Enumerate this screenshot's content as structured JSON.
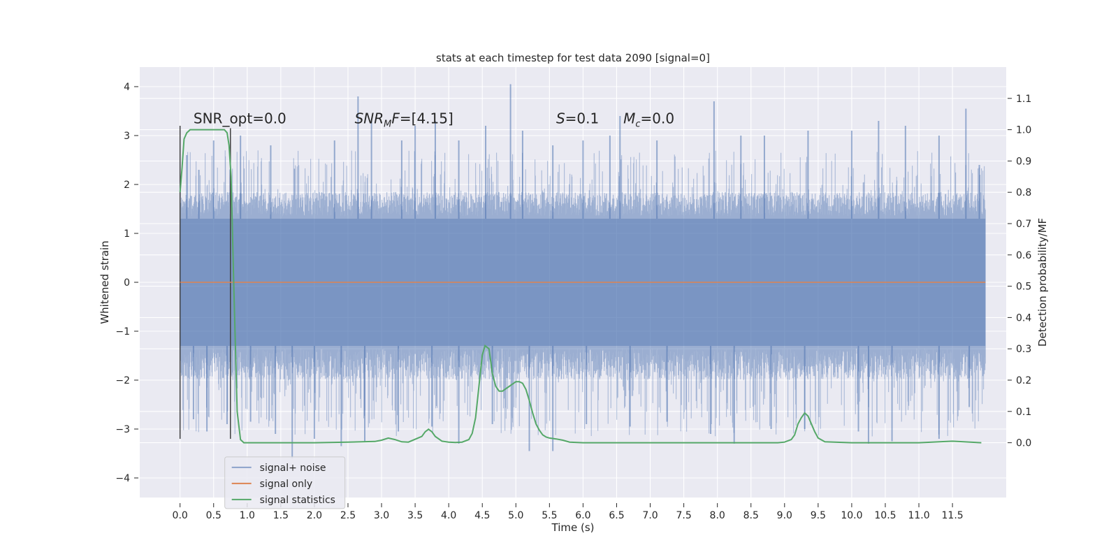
{
  "chart_data": {
    "type": "line",
    "title": "stats at each timestep for test data 2090 [signal=0]",
    "xlabel": "Time (s)",
    "ylabel": "Whitened strain",
    "y2label": "Detection probability/MF",
    "xlim": [
      -0.6,
      12.3
    ],
    "ylim": [
      -4.4,
      4.4
    ],
    "y2lim": [
      -0.175,
      1.2
    ],
    "x_ticks": [
      0.0,
      0.5,
      1.0,
      1.5,
      2.0,
      2.5,
      3.0,
      3.5,
      4.0,
      4.5,
      5.0,
      5.5,
      6.0,
      6.5,
      7.0,
      7.5,
      8.0,
      8.5,
      9.0,
      9.5,
      10.0,
      10.5,
      11.0,
      11.5
    ],
    "x_tick_labels": [
      "0.0",
      "0.5",
      "1.0",
      "1.5",
      "2.0",
      "2.5",
      "3.0",
      "3.5",
      "4.0",
      "4.5",
      "5.0",
      "5.5",
      "6.0",
      "6.5",
      "7.0",
      "7.5",
      "8.0",
      "8.5",
      "9.0",
      "9.5",
      "10.0",
      "10.5",
      "11.0",
      "11.5"
    ],
    "y_ticks": [
      -4,
      -3,
      -2,
      -1,
      0,
      1,
      2,
      3,
      4
    ],
    "y_tick_labels": [
      "−4",
      "−3",
      "−2",
      "−1",
      "0",
      "1",
      "2",
      "3",
      "4"
    ],
    "y2_ticks": [
      0.0,
      0.1,
      0.2,
      0.3,
      0.4,
      0.5,
      0.6,
      0.7,
      0.8,
      0.9,
      1.0,
      1.1
    ],
    "y2_tick_labels": [
      "0.0",
      "0.1",
      "0.2",
      "0.3",
      "0.4",
      "0.5",
      "0.6",
      "0.7",
      "0.8",
      "0.9",
      "1.0",
      "1.1"
    ],
    "grid": true,
    "legend_position": "bottom-left",
    "colors": {
      "background": "#eaeaf2",
      "grid": "#ffffff",
      "noise": "#4c72b0",
      "signal_only": "#dd8452",
      "statistics": "#55a868",
      "marker": "#404040"
    },
    "series": [
      {
        "name": "signal+ noise",
        "kind": "noise-band",
        "x_range": [
          0.0,
          11.99
        ],
        "core_band": [
          -1.3,
          1.3
        ],
        "typical_envelope": [
          -2.5,
          2.0
        ],
        "peaks_high": [
          [
            0.1,
            2.6
          ],
          [
            0.28,
            2.3
          ],
          [
            0.5,
            2.9
          ],
          [
            0.9,
            3.0
          ],
          [
            1.35,
            2.8
          ],
          [
            2.3,
            2.9
          ],
          [
            2.65,
            3.8
          ],
          [
            2.85,
            3.3
          ],
          [
            3.3,
            2.9
          ],
          [
            3.5,
            3.2
          ],
          [
            3.8,
            3.3
          ],
          [
            4.15,
            2.9
          ],
          [
            4.55,
            3.2
          ],
          [
            4.92,
            4.05
          ],
          [
            5.1,
            3.1
          ],
          [
            5.55,
            2.8
          ],
          [
            6.0,
            2.9
          ],
          [
            6.4,
            3.0
          ],
          [
            6.55,
            3.4
          ],
          [
            7.1,
            2.9
          ],
          [
            7.95,
            3.7
          ],
          [
            8.35,
            3.0
          ],
          [
            8.7,
            3.0
          ],
          [
            9.35,
            3.1
          ],
          [
            10.0,
            3.1
          ],
          [
            10.4,
            3.3
          ],
          [
            10.8,
            3.2
          ],
          [
            11.3,
            3.0
          ],
          [
            11.7,
            3.55
          ],
          [
            11.9,
            2.4
          ]
        ],
        "peaks_low": [
          [
            0.2,
            -2.8
          ],
          [
            0.4,
            -3.05
          ],
          [
            0.7,
            -2.9
          ],
          [
            1.05,
            -2.85
          ],
          [
            1.42,
            -3.1
          ],
          [
            1.67,
            -3.6
          ],
          [
            2.0,
            -3.2
          ],
          [
            2.4,
            -3.35
          ],
          [
            2.75,
            -3.25
          ],
          [
            3.25,
            -3.05
          ],
          [
            3.75,
            -2.95
          ],
          [
            4.15,
            -3.3
          ],
          [
            4.65,
            -2.9
          ],
          [
            5.2,
            -3.45
          ],
          [
            5.55,
            -3.45
          ],
          [
            6.05,
            -2.9
          ],
          [
            6.7,
            -2.95
          ],
          [
            7.25,
            -2.85
          ],
          [
            7.9,
            -3.1
          ],
          [
            8.25,
            -3.3
          ],
          [
            8.8,
            -3.0
          ],
          [
            9.3,
            -3.0
          ],
          [
            10.1,
            -3.05
          ],
          [
            10.25,
            -3.3
          ],
          [
            10.6,
            -3.25
          ],
          [
            11.3,
            -3.2
          ],
          [
            11.75,
            -2.55
          ]
        ]
      },
      {
        "name": "signal only",
        "kind": "line",
        "x": [
          0.0,
          11.99
        ],
        "y": [
          0.0,
          0.0
        ]
      },
      {
        "name": "signal statistics",
        "kind": "line",
        "axis": "right",
        "x": [
          0.0,
          0.03,
          0.06,
          0.1,
          0.15,
          0.2,
          0.3,
          0.4,
          0.5,
          0.6,
          0.66,
          0.7,
          0.73,
          0.76,
          0.8,
          0.85,
          0.9,
          0.95,
          1.0,
          1.5,
          2.0,
          2.5,
          2.9,
          3.0,
          3.1,
          3.2,
          3.3,
          3.4,
          3.6,
          3.65,
          3.7,
          3.75,
          3.8,
          3.9,
          4.0,
          4.1,
          4.2,
          4.3,
          4.35,
          4.4,
          4.45,
          4.5,
          4.54,
          4.6,
          4.65,
          4.7,
          4.75,
          4.8,
          4.9,
          5.0,
          5.05,
          5.1,
          5.15,
          5.2,
          5.25,
          5.3,
          5.35,
          5.4,
          5.45,
          5.5,
          5.6,
          5.7,
          5.8,
          6.0,
          6.5,
          7.0,
          7.5,
          8.0,
          8.5,
          8.9,
          9.0,
          9.1,
          9.15,
          9.2,
          9.25,
          9.3,
          9.35,
          9.4,
          9.45,
          9.5,
          9.6,
          10.0,
          10.5,
          11.0,
          11.5,
          11.93
        ],
        "y": [
          0.8,
          0.88,
          0.97,
          0.99,
          1.0,
          1.0,
          1.0,
          1.0,
          1.0,
          1.0,
          1.0,
          0.99,
          0.95,
          0.85,
          0.5,
          0.1,
          0.01,
          0.0,
          0.0,
          0.0,
          0.0,
          0.002,
          0.004,
          0.008,
          0.015,
          0.01,
          0.003,
          0.002,
          0.02,
          0.035,
          0.043,
          0.035,
          0.02,
          0.005,
          0.002,
          0.001,
          0.002,
          0.01,
          0.03,
          0.08,
          0.18,
          0.28,
          0.31,
          0.3,
          0.22,
          0.18,
          0.165,
          0.165,
          0.18,
          0.195,
          0.195,
          0.19,
          0.17,
          0.135,
          0.095,
          0.06,
          0.04,
          0.025,
          0.018,
          0.015,
          0.012,
          0.008,
          0.002,
          0.0,
          0.0,
          0.0,
          0.0,
          0.0,
          0.0,
          0.0,
          0.002,
          0.01,
          0.025,
          0.06,
          0.08,
          0.095,
          0.085,
          0.06,
          0.035,
          0.015,
          0.003,
          0.0,
          0.0,
          0.0,
          0.005,
          0.0
        ]
      }
    ],
    "markers": [
      {
        "x": 0.0,
        "y_range": [
          -3.2,
          3.2
        ]
      },
      {
        "x": 0.75,
        "y_range": [
          -3.2,
          3.15
        ]
      }
    ],
    "annotations": [
      {
        "id": "snr-opt",
        "x": 0.2,
        "y": 3.25,
        "parts": [
          {
            "text": "SNR_opt=0.0",
            "italic": false,
            "sub": false
          }
        ]
      },
      {
        "id": "snr-mf",
        "x": 2.6,
        "y": 3.25,
        "parts": [
          {
            "text": "SNR",
            "italic": true,
            "sub": false
          },
          {
            "text": "M",
            "italic": true,
            "sub": true
          },
          {
            "text": "F",
            "italic": true,
            "sub": false
          },
          {
            "text": "=[4.15]",
            "italic": false,
            "sub": false
          }
        ]
      },
      {
        "id": "s-value",
        "x": 5.6,
        "y": 3.25,
        "parts": [
          {
            "text": "S",
            "italic": true,
            "sub": false
          },
          {
            "text": "=0.1",
            "italic": false,
            "sub": false
          }
        ]
      },
      {
        "id": "mc-value",
        "x": 6.6,
        "y": 3.25,
        "parts": [
          {
            "text": "M",
            "italic": true,
            "sub": false
          },
          {
            "text": "c",
            "italic": true,
            "sub": true
          },
          {
            "text": "=0.0",
            "italic": false,
            "sub": false
          }
        ]
      }
    ],
    "legend": [
      {
        "label": "signal+ noise",
        "color": "#4c72b0"
      },
      {
        "label": "signal only",
        "color": "#dd8452"
      },
      {
        "label": "signal statistics",
        "color": "#55a868"
      }
    ]
  }
}
